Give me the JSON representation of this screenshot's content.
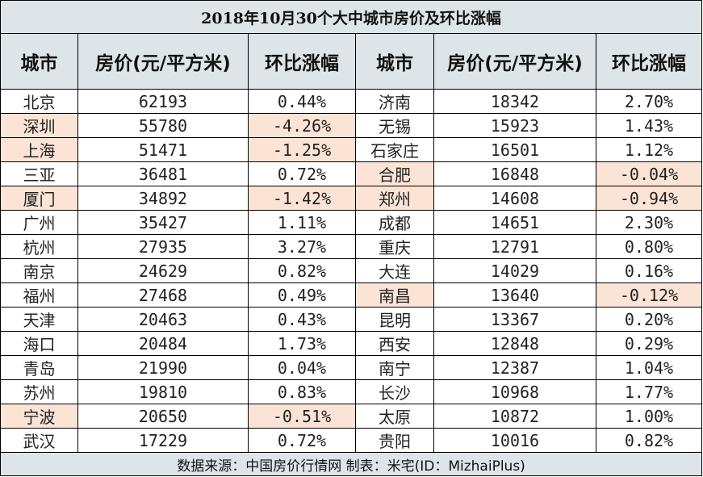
{
  "title": "2018年10月30个大中城市房价及环比涨幅",
  "headers": [
    "城市",
    "房价(元/平方米)",
    "环比涨幅",
    "城市",
    "房价(元/平方米)",
    "环比涨幅"
  ],
  "highlight_color": "#fbe4d5",
  "header_color": "#dde5e9",
  "rows": [
    {
      "left": {
        "city": "北京",
        "price": "62193",
        "change": "0.44%",
        "highlight": false
      },
      "right": {
        "city": "济南",
        "price": "18342",
        "change": "2.70%",
        "highlight": false
      }
    },
    {
      "left": {
        "city": "深圳",
        "price": "55780",
        "change": "-4.26%",
        "highlight": true
      },
      "right": {
        "city": "无锡",
        "price": "15923",
        "change": "1.43%",
        "highlight": false
      }
    },
    {
      "left": {
        "city": "上海",
        "price": "51471",
        "change": "-1.25%",
        "highlight": true
      },
      "right": {
        "city": "石家庄",
        "price": "16501",
        "change": "1.12%",
        "highlight": false
      }
    },
    {
      "left": {
        "city": "三亚",
        "price": "36481",
        "change": "0.72%",
        "highlight": false
      },
      "right": {
        "city": "合肥",
        "price": "16848",
        "change": "-0.04%",
        "highlight": true
      }
    },
    {
      "left": {
        "city": "厦门",
        "price": "34892",
        "change": "-1.42%",
        "highlight": true
      },
      "right": {
        "city": "郑州",
        "price": "14608",
        "change": "-0.94%",
        "highlight": true
      }
    },
    {
      "left": {
        "city": "广州",
        "price": "35427",
        "change": "1.11%",
        "highlight": false
      },
      "right": {
        "city": "成都",
        "price": "14651",
        "change": "2.30%",
        "highlight": false
      }
    },
    {
      "left": {
        "city": "杭州",
        "price": "27935",
        "change": "3.27%",
        "highlight": false
      },
      "right": {
        "city": "重庆",
        "price": "12791",
        "change": "0.80%",
        "highlight": false
      }
    },
    {
      "left": {
        "city": "南京",
        "price": "24629",
        "change": "0.82%",
        "highlight": false
      },
      "right": {
        "city": "大连",
        "price": "14029",
        "change": "0.16%",
        "highlight": false
      }
    },
    {
      "left": {
        "city": "福州",
        "price": "27468",
        "change": "0.49%",
        "highlight": false
      },
      "right": {
        "city": "南昌",
        "price": "13640",
        "change": "-0.12%",
        "highlight": true
      }
    },
    {
      "left": {
        "city": "天津",
        "price": "20463",
        "change": "0.43%",
        "highlight": false
      },
      "right": {
        "city": "昆明",
        "price": "13367",
        "change": "0.20%",
        "highlight": false
      }
    },
    {
      "left": {
        "city": "海口",
        "price": "20484",
        "change": "1.73%",
        "highlight": false
      },
      "right": {
        "city": "西安",
        "price": "12848",
        "change": "0.29%",
        "highlight": false
      }
    },
    {
      "left": {
        "city": "青岛",
        "price": "21990",
        "change": "0.04%",
        "highlight": false
      },
      "right": {
        "city": "南宁",
        "price": "12387",
        "change": "1.04%",
        "highlight": false
      }
    },
    {
      "left": {
        "city": "苏州",
        "price": "19810",
        "change": "0.83%",
        "highlight": false
      },
      "right": {
        "city": "长沙",
        "price": "10968",
        "change": "1.77%",
        "highlight": false
      }
    },
    {
      "left": {
        "city": "宁波",
        "price": "20650",
        "change": "-0.51%",
        "highlight": true
      },
      "right": {
        "city": "太原",
        "price": "10872",
        "change": "1.00%",
        "highlight": false
      }
    },
    {
      "left": {
        "city": "武汉",
        "price": "17229",
        "change": "0.72%",
        "highlight": false
      },
      "right": {
        "city": "贵阳",
        "price": "10016",
        "change": "0.82%",
        "highlight": false
      }
    }
  ],
  "footer": "数据来源：中国房价行情网 制表：米宅(ID：MizhaiPlus)"
}
